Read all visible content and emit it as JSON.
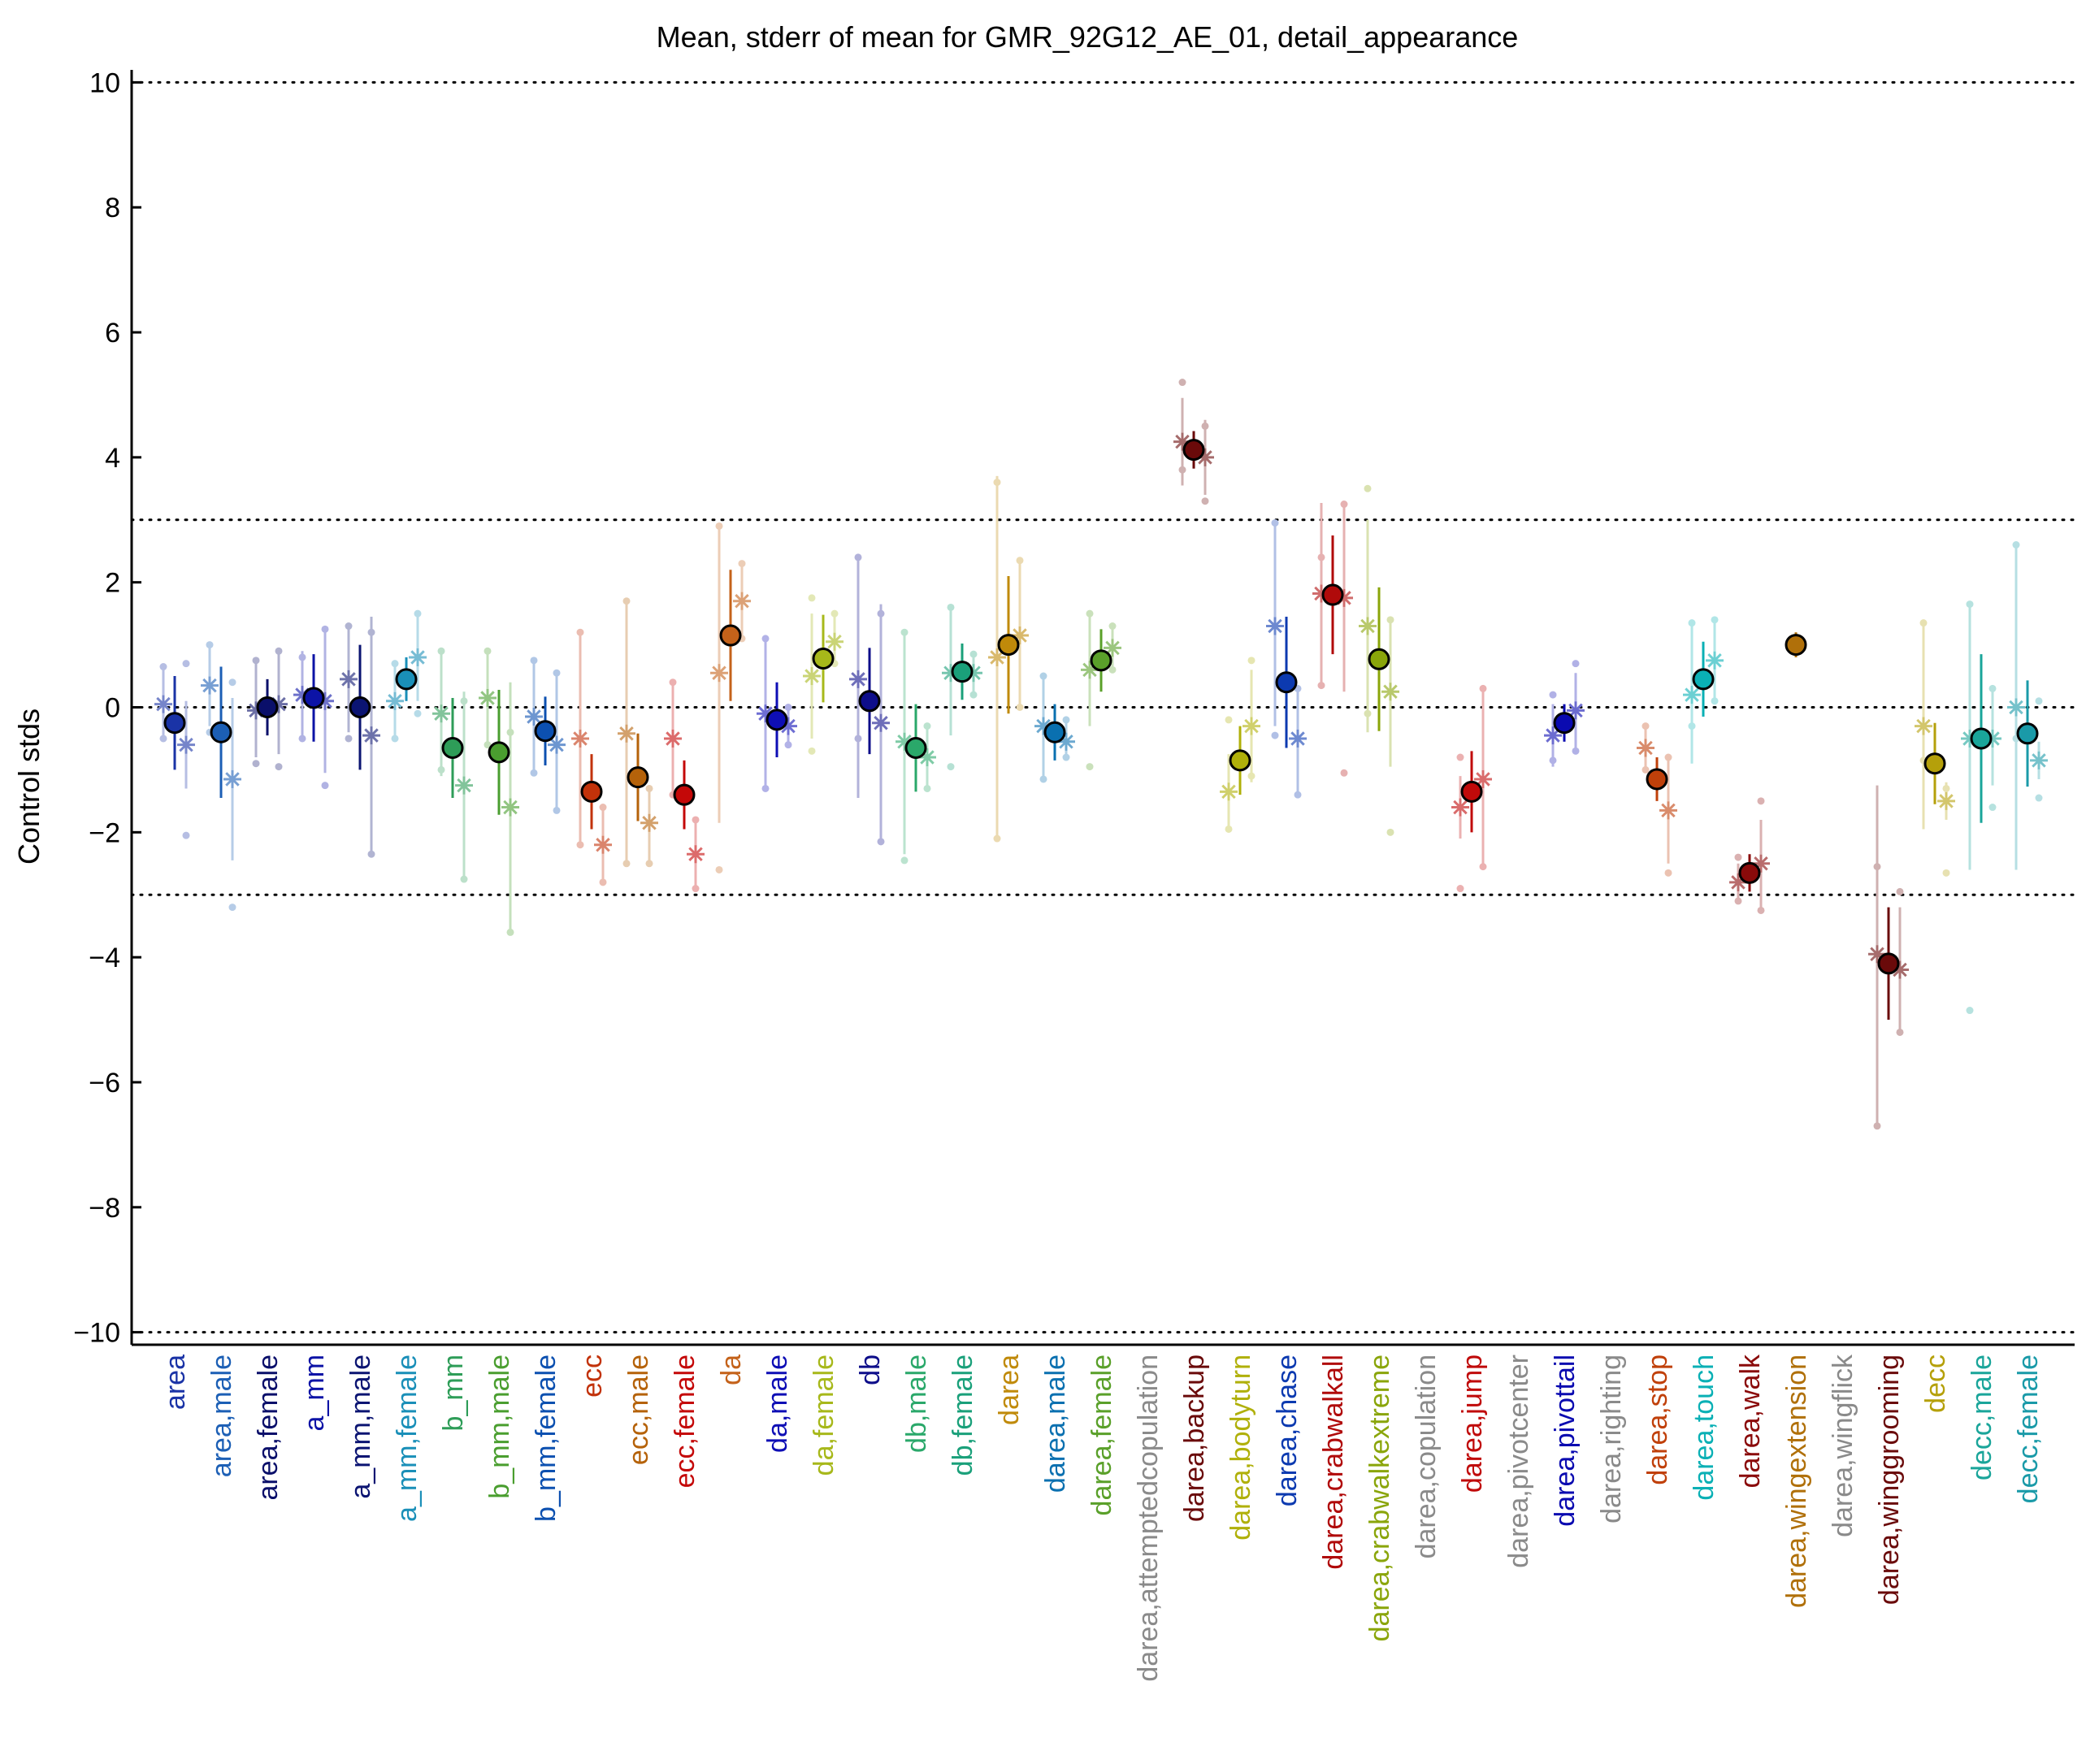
{
  "chart_data": {
    "type": "scatter",
    "title": "Mean, stderr of mean for GMR_92G12_AE_01, detail_appearance",
    "ylabel": "Control stds",
    "xlabel": "",
    "ylim": [
      -10.2,
      10.2
    ],
    "yticks": [
      -10,
      -8,
      -6,
      -4,
      -2,
      0,
      2,
      4,
      6,
      8,
      10
    ],
    "ytick_labels": [
      "−10",
      "−8",
      "−6",
      "−4",
      "−2",
      "0",
      "2",
      "4",
      "6",
      "8",
      "10"
    ],
    "hlines": [
      -10,
      -3,
      0,
      3,
      10
    ],
    "grid": false,
    "legend": "none",
    "categories": [
      {
        "label": "area",
        "color": "#1a33a6",
        "mean": -0.25,
        "sem": 0.75,
        "m": [
          0.05,
          0.6
        ],
        "f": [
          -0.6,
          0.7
        ],
        "pts": [
          0.65,
          -0.5,
          0.7,
          -2.05
        ]
      },
      {
        "label": "area,male",
        "color": "#1c5fb5",
        "mean": -0.4,
        "sem": 1.05,
        "m": [
          0.35,
          0.65
        ],
        "f": [
          -1.15,
          1.3
        ],
        "pts": [
          1.0,
          -0.4,
          0.4,
          -3.2
        ]
      },
      {
        "label": "area,female",
        "color": "#0a0f6a",
        "mean": 0.0,
        "sem": 0.45,
        "m": [
          -0.05,
          0.75
        ],
        "f": [
          0.05,
          0.8
        ],
        "pts": [
          0.75,
          -0.9,
          0.9,
          -0.95
        ]
      },
      {
        "label": "a_mm",
        "color": "#0c13a6",
        "mean": 0.15,
        "sem": 0.7,
        "m": [
          0.2,
          0.7
        ],
        "f": [
          0.1,
          1.15
        ],
        "pts": [
          0.8,
          -0.5,
          1.25,
          -1.25
        ]
      },
      {
        "label": "a_mm,male",
        "color": "#0b1472",
        "mean": 0.0,
        "sem": 1.0,
        "m": [
          0.45,
          0.85
        ],
        "f": [
          -0.45,
          1.9
        ],
        "pts": [
          1.3,
          -0.5,
          1.2,
          -2.35
        ]
      },
      {
        "label": "a_mm,female",
        "color": "#1a8fb8",
        "mean": 0.45,
        "sem": 0.35,
        "m": [
          0.1,
          0.6
        ],
        "f": [
          0.8,
          0.7
        ],
        "pts": [
          0.7,
          -0.5,
          1.5,
          -0.1
        ]
      },
      {
        "label": "b_mm",
        "color": "#2e9d58",
        "mean": -0.65,
        "sem": 0.8,
        "m": [
          -0.1,
          1.0
        ],
        "f": [
          -1.25,
          1.5
        ],
        "pts": [
          0.9,
          -1.0,
          0.1,
          -2.75
        ]
      },
      {
        "label": "b_mm,male",
        "color": "#4a9e2f",
        "mean": -0.72,
        "sem": 1.0,
        "m": [
          0.15,
          0.75
        ],
        "f": [
          -1.6,
          2.0
        ],
        "pts": [
          0.9,
          -0.6,
          -0.4,
          -3.6
        ]
      },
      {
        "label": "b_mm,female",
        "color": "#0c50b0",
        "mean": -0.38,
        "sem": 0.55,
        "m": [
          -0.15,
          0.9
        ],
        "f": [
          -0.6,
          1.1
        ],
        "pts": [
          0.75,
          -1.05,
          0.55,
          -1.65
        ]
      },
      {
        "label": "ecc",
        "color": "#c2320a",
        "mean": -1.35,
        "sem": 0.6,
        "m": [
          -0.5,
          1.7
        ],
        "f": [
          -2.2,
          0.6
        ],
        "pts": [
          1.2,
          -2.2,
          -1.6,
          -2.8
        ]
      },
      {
        "label": "ecc,male",
        "color": "#b5620a",
        "mean": -1.12,
        "sem": 0.7,
        "m": [
          -0.42,
          2.1
        ],
        "f": [
          -1.85,
          0.6
        ],
        "pts": [
          1.7,
          -2.5,
          -1.3,
          -2.5
        ]
      },
      {
        "label": "ecc,female",
        "color": "#c40808",
        "mean": -1.4,
        "sem": 0.55,
        "m": [
          -0.5,
          0.9
        ],
        "f": [
          -2.35,
          0.55
        ],
        "pts": [
          0.4,
          -1.4,
          -1.8,
          -2.9
        ]
      },
      {
        "label": "da",
        "color": "#c4621a",
        "mean": 1.15,
        "sem": 1.05,
        "m": [
          0.55,
          2.4
        ],
        "f": [
          1.7,
          0.6
        ],
        "pts": [
          2.9,
          -2.6,
          2.3,
          1.1
        ]
      },
      {
        "label": "da,male",
        "color": "#0e0eb5",
        "mean": -0.2,
        "sem": 0.6,
        "m": [
          -0.1,
          1.2
        ],
        "f": [
          -0.3,
          0.3
        ],
        "pts": [
          1.1,
          -1.3,
          0.0,
          -0.6
        ]
      },
      {
        "label": "da,female",
        "color": "#a7b81a",
        "mean": 0.78,
        "sem": 0.7,
        "m": [
          0.5,
          1.0
        ],
        "f": [
          1.05,
          0.4
        ],
        "pts": [
          1.75,
          -0.7,
          1.5,
          0.7
        ]
      },
      {
        "label": "db",
        "color": "#0e0e8a",
        "mean": 0.1,
        "sem": 0.85,
        "m": [
          0.45,
          1.9
        ],
        "f": [
          -0.25,
          1.9
        ],
        "pts": [
          2.4,
          -0.5,
          1.5,
          -2.15
        ]
      },
      {
        "label": "db,male",
        "color": "#2aa86a",
        "mean": -0.65,
        "sem": 0.7,
        "m": [
          -0.55,
          1.8
        ],
        "f": [
          -0.8,
          0.5
        ],
        "pts": [
          1.2,
          -2.45,
          -0.3,
          -1.3
        ]
      },
      {
        "label": "db,female",
        "color": "#1aa07a",
        "mean": 0.57,
        "sem": 0.45,
        "m": [
          0.55,
          1.0
        ],
        "f": [
          0.55,
          0.3
        ],
        "pts": [
          1.6,
          -0.95,
          0.85,
          0.2
        ]
      },
      {
        "label": "darea",
        "color": "#c08a0a",
        "mean": 1.0,
        "sem": 1.1,
        "m": [
          0.8,
          2.9
        ],
        "f": [
          1.15,
          1.2
        ],
        "pts": [
          3.6,
          -2.1,
          2.35,
          0.0
        ]
      },
      {
        "label": "darea,male",
        "color": "#0a70b0",
        "mean": -0.4,
        "sem": 0.45,
        "m": [
          -0.3,
          0.85
        ],
        "f": [
          -0.55,
          0.3
        ],
        "pts": [
          0.5,
          -1.15,
          -0.2,
          -0.8
        ]
      },
      {
        "label": "darea,female",
        "color": "#5aa02a",
        "mean": 0.75,
        "sem": 0.5,
        "m": [
          0.6,
          0.9
        ],
        "f": [
          0.95,
          0.35
        ],
        "pts": [
          1.5,
          -0.95,
          1.3,
          0.6
        ]
      },
      {
        "label": "darea,attemptedcopulation",
        "color": "#8a8a8a"
      },
      {
        "label": "darea,backup",
        "color": "#6a0a0a",
        "mean": 4.12,
        "sem": 0.3,
        "m": [
          4.25,
          0.7
        ],
        "f": [
          4.0,
          0.6
        ],
        "pts": [
          5.2,
          3.8,
          4.5,
          3.3
        ]
      },
      {
        "label": "darea,bodyturn",
        "color": "#b0b00a",
        "mean": -0.85,
        "sem": 0.55,
        "m": [
          -1.35,
          0.6
        ],
        "f": [
          -0.3,
          0.9
        ],
        "pts": [
          -0.2,
          -1.95,
          0.75,
          -1.1
        ]
      },
      {
        "label": "darea,chase",
        "color": "#0c3ab0",
        "mean": 0.4,
        "sem": 1.05,
        "m": [
          1.3,
          1.6
        ],
        "f": [
          -0.5,
          0.85
        ],
        "pts": [
          2.95,
          -0.45,
          0.3,
          -1.4
        ]
      },
      {
        "label": "darea,crabwalkall",
        "color": "#b00a0a",
        "mean": 1.8,
        "sem": 0.95,
        "m": [
          1.82,
          1.45
        ],
        "f": [
          1.75,
          1.5
        ],
        "pts": [
          2.4,
          0.35,
          3.25,
          -1.05
        ]
      },
      {
        "label": "darea,crabwalkextreme",
        "color": "#8aa50a",
        "mean": 0.77,
        "sem": 1.15,
        "m": [
          1.3,
          1.7
        ],
        "f": [
          0.25,
          1.2
        ],
        "pts": [
          3.5,
          -0.1,
          1.4,
          -2.0
        ]
      },
      {
        "label": "darea,copulation",
        "color": "#8a8a8a"
      },
      {
        "label": "darea,jump",
        "color": "#c00a0a",
        "mean": -1.35,
        "sem": 0.65,
        "m": [
          -1.6,
          0.5
        ],
        "f": [
          -1.15,
          1.45
        ],
        "pts": [
          -0.8,
          -2.9,
          0.3,
          -2.55
        ]
      },
      {
        "label": "darea,pivotcenter",
        "color": "#8a8a8a"
      },
      {
        "label": "darea,pivottail",
        "color": "#0a0ab0",
        "mean": -0.25,
        "sem": 0.3,
        "m": [
          -0.45,
          0.5
        ],
        "f": [
          -0.05,
          0.6
        ],
        "pts": [
          0.2,
          -0.85,
          0.7,
          -0.7
        ]
      },
      {
        "label": "darea,righting",
        "color": "#8a8a8a"
      },
      {
        "label": "darea,stop",
        "color": "#c0400a",
        "mean": -1.15,
        "sem": 0.35,
        "m": [
          -0.65,
          0.35
        ],
        "f": [
          -1.65,
          0.85
        ],
        "pts": [
          -0.3,
          -1.0,
          -0.8,
          -2.65
        ]
      },
      {
        "label": "darea,touch",
        "color": "#0ab0b5",
        "mean": 0.45,
        "sem": 0.6,
        "m": [
          0.2,
          1.1
        ],
        "f": [
          0.75,
          0.65
        ],
        "pts": [
          1.35,
          -0.3,
          1.4,
          0.1
        ]
      },
      {
        "label": "darea,walk",
        "color": "#8a0a0a",
        "mean": -2.65,
        "sem": 0.3,
        "m": [
          -2.8,
          0.3
        ],
        "f": [
          -2.5,
          0.7
        ],
        "pts": [
          -2.4,
          -3.1,
          -1.5,
          -3.25
        ]
      },
      {
        "label": "darea,wingextension",
        "color": "#b0700a",
        "mean": 1.0,
        "sem": 0.2
      },
      {
        "label": "darea,wingflick",
        "color": "#8a8a8a"
      },
      {
        "label": "darea,winggrooming",
        "color": "#6a0a0a",
        "mean": -4.1,
        "sem": 0.9,
        "m": [
          -3.95,
          2.7
        ],
        "f": [
          -4.2,
          1.0
        ],
        "pts": [
          -2.55,
          -6.7,
          -2.95,
          -5.2
        ]
      },
      {
        "label": "decc",
        "color": "#b5a00a",
        "mean": -0.9,
        "sem": 0.65,
        "m": [
          -0.3,
          1.65
        ],
        "f": [
          -1.5,
          0.3
        ],
        "pts": [
          1.35,
          -0.85,
          -1.3,
          -2.65
        ]
      },
      {
        "label": "decc,male",
        "color": "#1aa59a",
        "mean": -0.5,
        "sem": 1.35,
        "m": [
          -0.5,
          2.1
        ],
        "f": [
          -0.5,
          0.75
        ],
        "pts": [
          1.65,
          -4.85,
          0.3,
          -1.6
        ]
      },
      {
        "label": "decc,female",
        "color": "#1a9aa8",
        "mean": -0.42,
        "sem": 0.85,
        "m": [
          0.0,
          2.6
        ],
        "f": [
          -0.85,
          0.3
        ],
        "pts": [
          2.6,
          -0.5,
          0.1,
          -1.45
        ]
      }
    ]
  }
}
